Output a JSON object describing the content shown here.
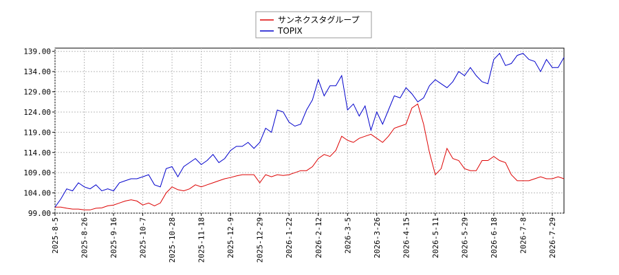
{
  "chart_data": {
    "type": "line",
    "categories": [
      "2025-8-5",
      null,
      null,
      null,
      null,
      "2025-8-26",
      null,
      null,
      null,
      null,
      "2025-9-16",
      null,
      null,
      null,
      null,
      "2025-10-7",
      null,
      null,
      null,
      null,
      "2025-10-28",
      null,
      null,
      null,
      null,
      "2025-11-18",
      null,
      null,
      null,
      null,
      "2025-12-9",
      null,
      null,
      null,
      null,
      "2025-12-29",
      null,
      null,
      null,
      null,
      "2026-1-22",
      null,
      null,
      null,
      null,
      "2026-2-12",
      null,
      null,
      null,
      null,
      "2026-3-5",
      null,
      null,
      null,
      null,
      "2026-3-26",
      null,
      null,
      null,
      null,
      "2026-4-15",
      null,
      null,
      null,
      null,
      "2026-5-11",
      null,
      null,
      null,
      null,
      "2026-5-29",
      null,
      null,
      null,
      null,
      "2026-6-18",
      null,
      null,
      null,
      null,
      "2026-7-8",
      null,
      null,
      null,
      null,
      "2026-7-29",
      null,
      null
    ],
    "series": [
      {
        "name": "サンネクスタグループ",
        "color": "#dd0000",
        "values": [
          100.5,
          100.5,
          100.2,
          100,
          100,
          99.8,
          99.8,
          100.2,
          100.3,
          100.8,
          101,
          101.5,
          102,
          102.3,
          102,
          101,
          101.5,
          100.8,
          101.5,
          104,
          105.5,
          104.8,
          104.5,
          105,
          106,
          105.5,
          106,
          106.5,
          107,
          107.5,
          107.8,
          108.2,
          108.5,
          108.5,
          108.5,
          106.5,
          108.5,
          108,
          108.5,
          108.3,
          108.5,
          109,
          109.5,
          109.5,
          110.5,
          112.5,
          113.5,
          113,
          114.5,
          118,
          117,
          116.5,
          117.5,
          118,
          118.5,
          117.5,
          116.5,
          118,
          120,
          120.5,
          121,
          125,
          126,
          121,
          114,
          108.5,
          110,
          115,
          112.5,
          112,
          110,
          109.5,
          109.5,
          112,
          112,
          113,
          112,
          111.5,
          108.5,
          107,
          107,
          107,
          107.5,
          108,
          107.5,
          107.5,
          108,
          107.5
        ]
      },
      {
        "name": "TOPIX",
        "color": "#0000cc",
        "values": [
          100.5,
          102.5,
          105,
          104.5,
          106.5,
          105.5,
          105,
          106,
          104.5,
          105,
          104.5,
          106.5,
          107,
          107.5,
          107.5,
          108,
          108.5,
          106,
          105.5,
          110,
          110.5,
          108,
          110.5,
          111.5,
          112.5,
          111,
          112,
          113.5,
          111.5,
          112.5,
          114.5,
          115.5,
          115.5,
          116.5,
          115,
          116.5,
          120,
          119,
          124.5,
          124,
          121.5,
          120.5,
          121,
          124.5,
          127,
          132,
          128,
          130.5,
          130.5,
          133,
          124.5,
          126,
          123,
          125.5,
          119.5,
          124,
          121,
          124.5,
          128,
          127.5,
          130,
          128.5,
          126.5,
          127.5,
          130.5,
          132,
          131,
          130,
          131.5,
          134,
          133,
          135,
          133,
          131.5,
          131,
          137,
          138.5,
          135.5,
          136,
          138,
          138.5,
          137,
          136.5,
          134,
          137,
          135,
          135,
          137.5
        ]
      }
    ],
    "ylim": [
      99,
      139.8
    ],
    "yticks": [
      {
        "value": 99,
        "label": "99.00"
      },
      {
        "value": 104,
        "label": "104.00"
      },
      {
        "value": 109,
        "label": "109.00"
      },
      {
        "value": 114,
        "label": "114.00"
      },
      {
        "value": 119,
        "label": "119.00"
      },
      {
        "value": 124,
        "label": "124.00"
      },
      {
        "value": 129,
        "label": "129.00"
      },
      {
        "value": 134,
        "label": "134.00"
      },
      {
        "value": 139,
        "label": "139.00"
      }
    ],
    "grid": true
  }
}
